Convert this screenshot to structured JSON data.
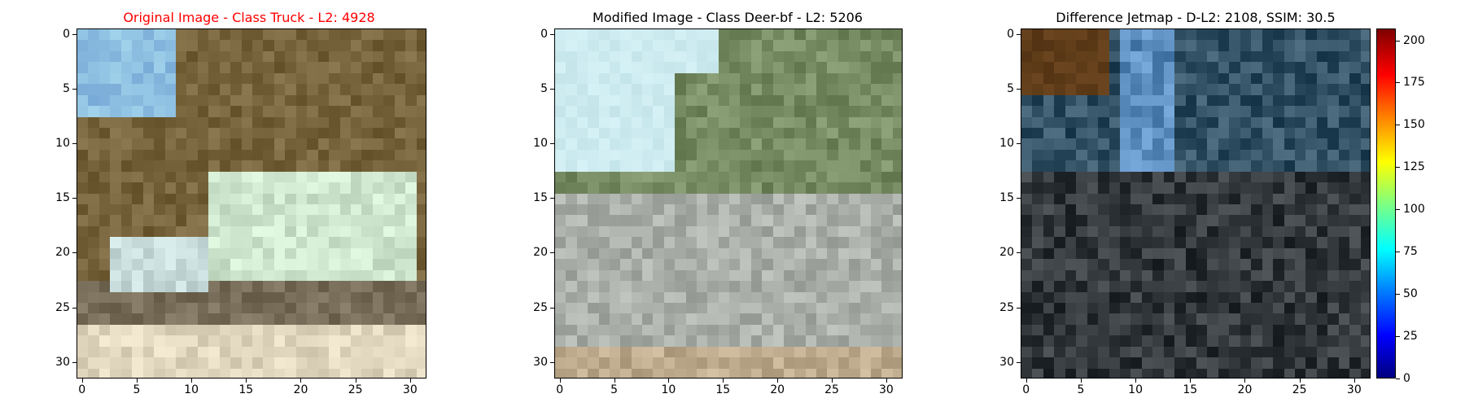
{
  "panels": [
    {
      "id": "original",
      "title": "Original Image - Class Truck - L2: 4928",
      "title_color": "#ff0000"
    },
    {
      "id": "modified",
      "title": "Modified Image - Class Deer-bf - L2: 5206",
      "title_color": "#000000"
    },
    {
      "id": "difference",
      "title": "Difference Jetmap - D-L2: 2108, SSIM: 30.5",
      "title_color": "#000000"
    }
  ],
  "axis_ticks": {
    "x": [
      "0",
      "5",
      "10",
      "15",
      "20",
      "25",
      "30"
    ],
    "y": [
      "0",
      "5",
      "10",
      "15",
      "20",
      "25",
      "30"
    ]
  },
  "colorbar_ticks": [
    "0",
    "25",
    "50",
    "75",
    "100",
    "125",
    "150",
    "175",
    "200"
  ]
}
